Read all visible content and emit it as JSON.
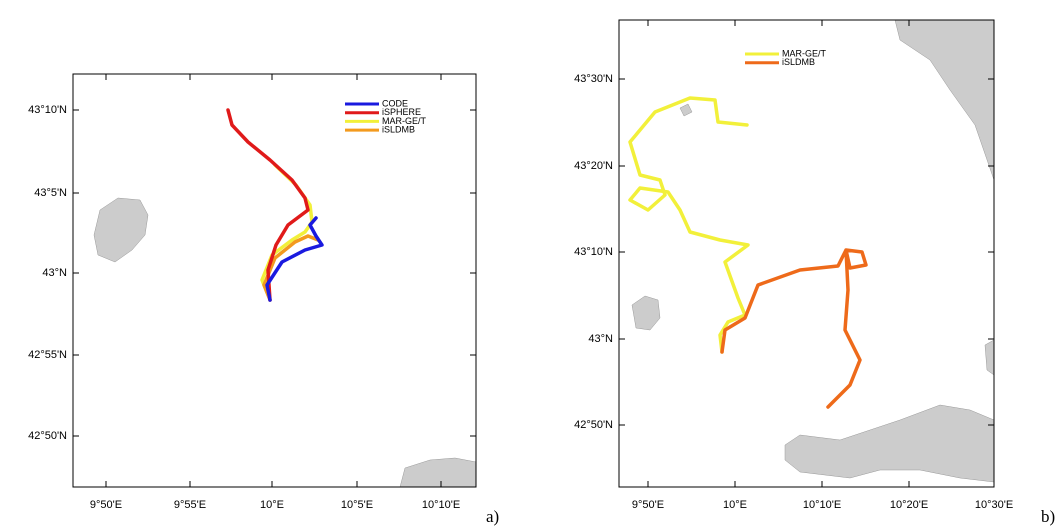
{
  "panels": [
    {
      "label": "a)",
      "yticks": [
        "43°10'N",
        "43°5'N",
        "43°N",
        "42°55'N",
        "42°50'N"
      ],
      "xticks": [
        "9°50'E",
        "9°55'E",
        "10°E",
        "10°5'E",
        "10°10'E"
      ],
      "legend": [
        {
          "name": "CODE",
          "color": "#1a1adf"
        },
        {
          "name": "iSPHERE",
          "color": "#e01a1a"
        },
        {
          "name": "MAR-GE/T",
          "color": "#f2f03a"
        },
        {
          "name": "iSLDMB",
          "color": "#f39a1e"
        }
      ]
    },
    {
      "label": "b)",
      "yticks": [
        "43°30'N",
        "43°20'N",
        "43°10'N",
        "43°N",
        "42°50'N"
      ],
      "xticks": [
        "9°50'E",
        "10°E",
        "10°10'E",
        "10°20'E",
        "10°30'E"
      ],
      "legend": [
        {
          "name": "MAR-GE/T",
          "color": "#f2f03a"
        },
        {
          "name": "iSLDMB",
          "color": "#ee6a1a"
        }
      ]
    }
  ]
}
